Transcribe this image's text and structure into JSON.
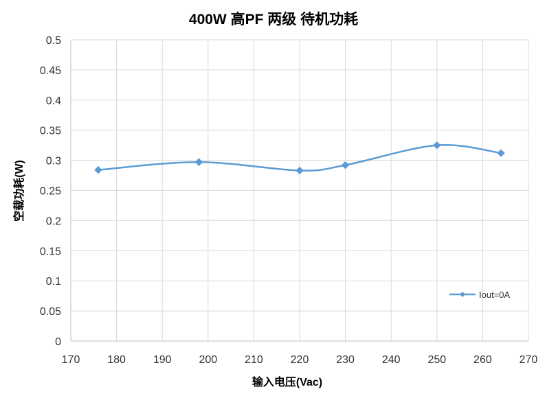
{
  "chart_data": {
    "type": "line",
    "title": "400W 高PF 两级 待机功耗",
    "xlabel": "输入电压(Vac)",
    "ylabel": "空载功耗(W)",
    "xlim": [
      170,
      270
    ],
    "ylim": [
      0,
      0.5
    ],
    "xticks": [
      170,
      180,
      190,
      200,
      210,
      220,
      230,
      240,
      250,
      260,
      270
    ],
    "yticks": [
      0,
      0.05,
      0.1,
      0.15,
      0.2,
      0.25,
      0.3,
      0.35,
      0.4,
      0.45,
      0.5
    ],
    "grid": true,
    "legend_position": "bottom-right",
    "series": [
      {
        "name": "Iout=0A",
        "color": "#5B9BD5",
        "marker": "diamond",
        "smooth": true,
        "x": [
          176,
          198,
          220,
          230,
          250,
          264
        ],
        "y": [
          0.284,
          0.297,
          0.283,
          0.292,
          0.325,
          0.312
        ]
      }
    ]
  }
}
